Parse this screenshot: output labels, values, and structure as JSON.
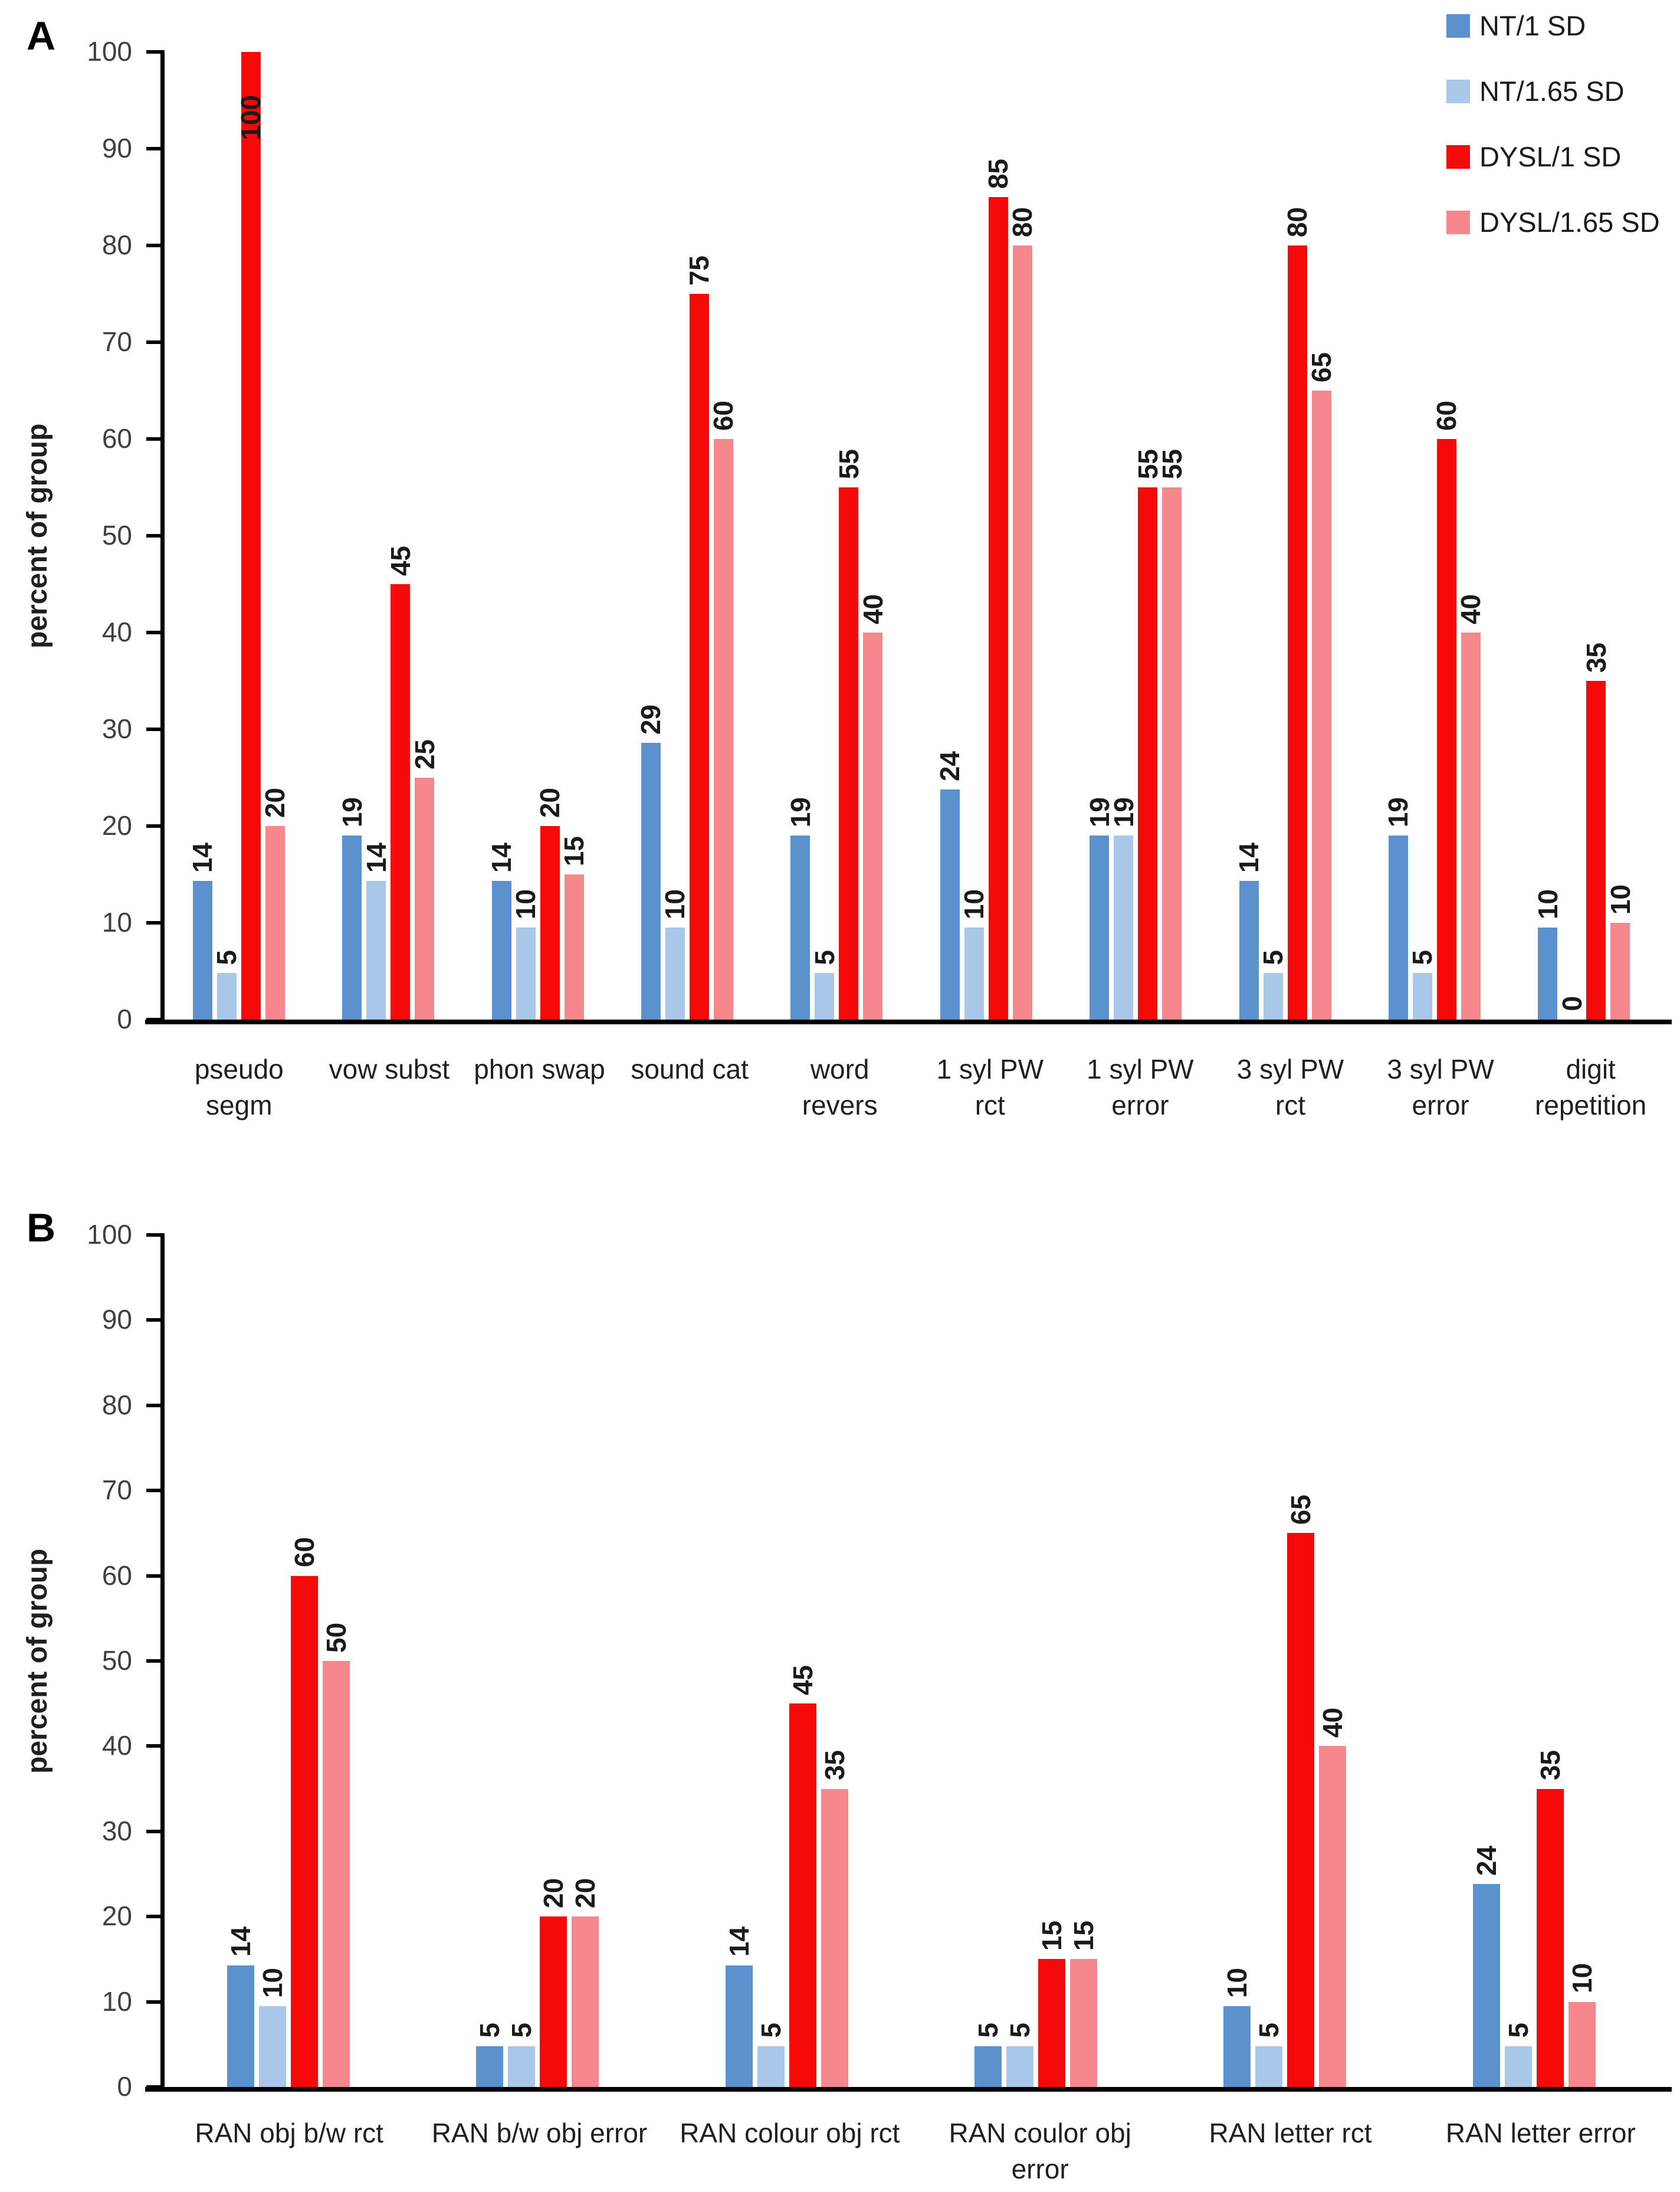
{
  "chart_data": [
    {
      "type": "bar",
      "panel_label": "A",
      "title": "",
      "xlabel": "",
      "ylabel": "percent of group",
      "ylim": [
        0,
        100
      ],
      "y_ticks": [
        100,
        90,
        80,
        70,
        60,
        50,
        40,
        30,
        20,
        10,
        0
      ],
      "grid": false,
      "legend_position": "top-right",
      "legend": {
        "items": [
          {
            "label": "NT/1 SD",
            "color": "#5B92CE"
          },
          {
            "label": "NT/1.65 SD",
            "color": "#A9C7E8"
          },
          {
            "label": "DYSL/1 SD",
            "color": "#F60909"
          },
          {
            "label": "DYSL/1.65 SD",
            "color": "#F6878C"
          }
        ]
      },
      "categories": [
        "pseudo\nsegm",
        "vow subst",
        "phon swap",
        "sound cat",
        "word\nrevers",
        "1 syl PW\nrct",
        "1 syl PW\nerror",
        "3 syl PW\nrct",
        "3 syl PW\nerror",
        "digit\nrepetition"
      ],
      "series": [
        {
          "name": "NT/1 SD",
          "color": "#5B92CE",
          "values": [
            14.3,
            19,
            14.3,
            28.6,
            19,
            23.8,
            19,
            14.3,
            19,
            9.5
          ],
          "labels": [
            "14",
            "19",
            "14",
            "29",
            "19",
            "24",
            "19",
            "14",
            "19",
            "10"
          ]
        },
        {
          "name": "NT/1.65 SD",
          "color": "#A9C7E8",
          "values": [
            4.8,
            14.3,
            9.5,
            9.5,
            4.8,
            9.5,
            19,
            4.8,
            4.8,
            0
          ],
          "labels": [
            "5",
            "14",
            "10",
            "10",
            "5",
            "10",
            "19",
            "5",
            "5",
            "0"
          ]
        },
        {
          "name": "DYSL/1 SD",
          "color": "#F60909",
          "values": [
            100,
            45,
            20,
            75,
            55,
            85,
            55,
            80,
            60,
            35
          ],
          "labels": [
            "100",
            "45",
            "20",
            "75",
            "55",
            "85",
            "55",
            "80",
            "60",
            "35"
          ]
        },
        {
          "name": "DYSL/1.65 SD",
          "color": "#F6878C",
          "values": [
            20,
            25,
            15,
            60,
            40,
            80,
            55,
            65,
            40,
            10
          ],
          "labels": [
            "20",
            "25",
            "15",
            "60",
            "40",
            "80",
            "55",
            "65",
            "40",
            "10"
          ]
        }
      ]
    },
    {
      "type": "bar",
      "panel_label": "B",
      "title": "",
      "xlabel": "",
      "ylabel": "percent of group",
      "ylim": [
        0,
        100
      ],
      "y_ticks": [
        100,
        90,
        80,
        70,
        60,
        50,
        40,
        30,
        20,
        10,
        0
      ],
      "grid": false,
      "legend_position": "none",
      "categories": [
        "RAN obj b/w rct",
        "RAN b/w obj error",
        "RAN colour obj rct",
        "RAN coulor obj\nerror",
        "RAN letter rct",
        "RAN letter error"
      ],
      "series": [
        {
          "name": "NT/1 SD",
          "color": "#5B92CE",
          "values": [
            14.3,
            4.8,
            14.3,
            4.8,
            9.5,
            23.8
          ],
          "labels": [
            "14",
            "5",
            "14",
            "5",
            "10",
            "24"
          ]
        },
        {
          "name": "NT/1.65 SD",
          "color": "#A9C7E8",
          "values": [
            9.5,
            4.8,
            4.8,
            4.8,
            4.8,
            4.8
          ],
          "labels": [
            "10",
            "5",
            "5",
            "5",
            "5",
            "5"
          ]
        },
        {
          "name": "DYSL/1 SD",
          "color": "#F60909",
          "values": [
            60,
            20,
            45,
            15,
            65,
            35
          ],
          "labels": [
            "60",
            "20",
            "45",
            "15",
            "65",
            "35"
          ]
        },
        {
          "name": "DYSL/1.65 SD",
          "color": "#F6878C",
          "values": [
            50,
            20,
            35,
            15,
            40,
            10
          ],
          "labels": [
            "50",
            "20",
            "35",
            "15",
            "40",
            "10"
          ]
        }
      ]
    }
  ]
}
